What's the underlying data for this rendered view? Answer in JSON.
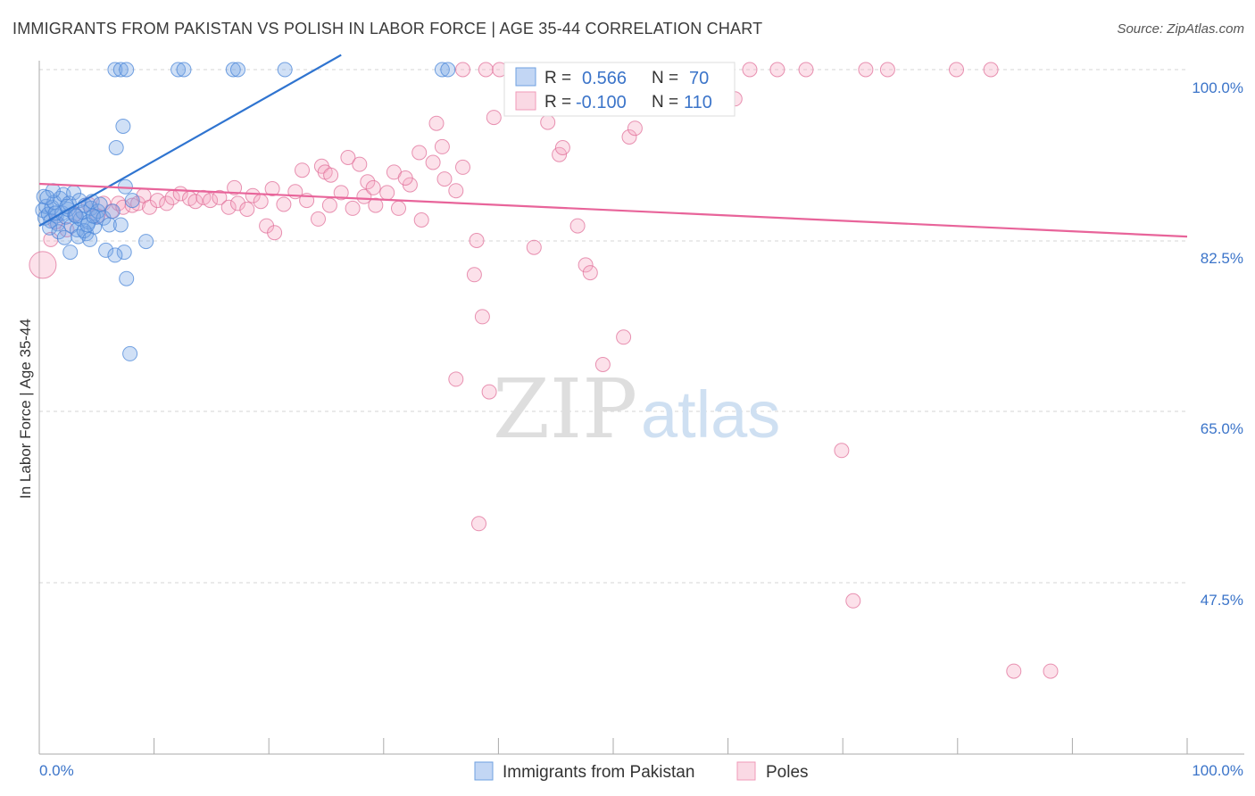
{
  "header": {
    "title": "IMMIGRANTS FROM PAKISTAN VS POLISH IN LABOR FORCE | AGE 35-44 CORRELATION CHART",
    "source": "Source: ZipAtlas.com"
  },
  "watermark": {
    "zip": "ZIP",
    "atlas": "atlas"
  },
  "legend": {
    "rows": [
      {
        "r_label": "R =",
        "r_value": "0.566",
        "n_label": "N =",
        "n_value": "70",
        "color": "#6fa0e0"
      },
      {
        "r_label": "R =",
        "r_value": "-0.100",
        "n_label": "N =",
        "n_value": "110",
        "color": "#f09ab8"
      }
    ]
  },
  "bottom_legend": [
    {
      "label": "Immigrants from Pakistan",
      "color": "#6fa0e0"
    },
    {
      "label": "Poles",
      "color": "#f09ab8"
    }
  ],
  "chart_data": {
    "type": "scatter",
    "title": "IMMIGRANTS FROM PAKISTAN VS POLISH IN LABOR FORCE | AGE 35-44 CORRELATION CHART",
    "xlabel": "",
    "ylabel": "In Labor Force | Age 35-44",
    "xlim": [
      0,
      100
    ],
    "ylim": [
      30,
      101.5
    ],
    "x_tick_labels": [
      "0.0%",
      "100.0%"
    ],
    "y_ticks": [
      100,
      82.5,
      65,
      47.5
    ],
    "y_tick_labels": [
      "100.0%",
      "82.5%",
      "65.0%",
      "47.5%"
    ],
    "grid": true,
    "series": [
      {
        "name": "Immigrants from Pakistan",
        "color": "#4a86d8",
        "fill": "rgba(120,165,230,0.35)",
        "trend": {
          "x0": 0,
          "y0": 84.0,
          "x1": 26.3,
          "y1": 101.5,
          "color": "#2f74d0"
        },
        "points": [
          [
            0.3,
            85.6
          ],
          [
            0.5,
            84.8
          ],
          [
            0.6,
            86.0
          ],
          [
            0.8,
            85.2
          ],
          [
            1.0,
            84.5
          ],
          [
            1.1,
            85.9
          ],
          [
            1.3,
            86.4
          ],
          [
            1.5,
            85.0
          ],
          [
            1.6,
            84.2
          ],
          [
            1.8,
            86.8
          ],
          [
            2.0,
            85.3
          ],
          [
            2.1,
            87.2
          ],
          [
            2.3,
            84.9
          ],
          [
            2.5,
            85.7
          ],
          [
            2.6,
            86.3
          ],
          [
            2.8,
            84.0
          ],
          [
            3.0,
            87.4
          ],
          [
            3.1,
            85.1
          ],
          [
            3.3,
            83.6
          ],
          [
            3.5,
            86.6
          ],
          [
            3.6,
            84.7
          ],
          [
            3.8,
            85.4
          ],
          [
            4.0,
            86.1
          ],
          [
            4.1,
            83.2
          ],
          [
            4.3,
            84.4
          ],
          [
            4.5,
            85.8
          ],
          [
            4.6,
            86.5
          ],
          [
            4.8,
            83.9
          ],
          [
            5.0,
            84.9
          ],
          [
            5.1,
            85.5
          ],
          [
            5.3,
            86.2
          ],
          [
            0.4,
            87.0
          ],
          [
            0.9,
            83.8
          ],
          [
            1.2,
            87.6
          ],
          [
            1.7,
            83.4
          ],
          [
            2.2,
            82.8
          ],
          [
            2.7,
            81.3
          ],
          [
            3.4,
            82.9
          ],
          [
            3.9,
            83.5
          ],
          [
            4.4,
            82.6
          ],
          [
            0.7,
            86.9
          ],
          [
            1.4,
            85.3
          ],
          [
            2.4,
            86.0
          ],
          [
            3.2,
            85.0
          ],
          [
            4.2,
            84.1
          ],
          [
            4.7,
            85.0
          ],
          [
            5.6,
            84.8
          ],
          [
            6.1,
            84.1
          ],
          [
            6.4,
            85.5
          ],
          [
            5.8,
            81.5
          ],
          [
            7.1,
            84.1
          ],
          [
            8.1,
            86.6
          ],
          [
            7.4,
            81.3
          ],
          [
            6.6,
            81.0
          ],
          [
            9.3,
            82.4
          ],
          [
            7.9,
            70.9
          ],
          [
            7.6,
            78.6
          ],
          [
            7.5,
            88.0
          ],
          [
            6.7,
            92.0
          ],
          [
            7.3,
            94.2
          ],
          [
            6.6,
            100
          ],
          [
            7.1,
            100
          ],
          [
            7.6,
            100
          ],
          [
            12.1,
            100
          ],
          [
            12.6,
            100
          ],
          [
            16.9,
            100
          ],
          [
            17.3,
            100
          ],
          [
            21.4,
            100
          ],
          [
            35.1,
            100
          ],
          [
            35.6,
            100
          ]
        ]
      },
      {
        "name": "Poles",
        "color": "#e0709a",
        "fill": "rgba(245,170,195,0.35)",
        "trend": {
          "x0": 0,
          "y0": 88.3,
          "x1": 100,
          "y1": 82.9,
          "color": "#e8649a"
        },
        "points": [
          [
            0.3,
            80.0
          ],
          [
            1.0,
            82.6
          ],
          [
            1.4,
            84.4
          ],
          [
            2.4,
            83.6
          ],
          [
            3.1,
            85.2
          ],
          [
            4.3,
            86.2
          ],
          [
            5.1,
            85.0
          ],
          [
            5.6,
            86.3
          ],
          [
            6.3,
            85.5
          ],
          [
            6.9,
            86.3
          ],
          [
            7.3,
            85.9
          ],
          [
            8.1,
            86.1
          ],
          [
            8.6,
            86.3
          ],
          [
            9.1,
            87.1
          ],
          [
            9.6,
            85.9
          ],
          [
            10.3,
            86.6
          ],
          [
            11.1,
            86.3
          ],
          [
            11.6,
            86.9
          ],
          [
            12.3,
            87.3
          ],
          [
            13.1,
            86.8
          ],
          [
            13.6,
            86.5
          ],
          [
            14.3,
            86.9
          ],
          [
            14.9,
            86.6
          ],
          [
            15.7,
            86.9
          ],
          [
            16.5,
            85.9
          ],
          [
            17.3,
            86.3
          ],
          [
            18.1,
            85.7
          ],
          [
            18.6,
            87.1
          ],
          [
            19.3,
            86.5
          ],
          [
            20.3,
            87.8
          ],
          [
            21.3,
            86.2
          ],
          [
            22.3,
            87.5
          ],
          [
            23.3,
            86.6
          ],
          [
            24.3,
            84.7
          ],
          [
            25.3,
            86.1
          ],
          [
            26.3,
            87.4
          ],
          [
            27.3,
            85.8
          ],
          [
            28.3,
            87.0
          ],
          [
            29.3,
            86.1
          ],
          [
            30.3,
            87.4
          ],
          [
            31.3,
            85.8
          ],
          [
            32.3,
            88.2
          ],
          [
            33.3,
            84.6
          ],
          [
            34.3,
            90.5
          ],
          [
            35.3,
            88.8
          ],
          [
            36.3,
            87.6
          ],
          [
            17.0,
            87.9
          ],
          [
            19.8,
            84.0
          ],
          [
            20.5,
            83.3
          ],
          [
            22.9,
            89.7
          ],
          [
            24.6,
            90.1
          ],
          [
            24.9,
            89.5
          ],
          [
            25.4,
            89.2
          ],
          [
            26.9,
            91.0
          ],
          [
            27.9,
            90.3
          ],
          [
            28.6,
            88.5
          ],
          [
            29.1,
            87.9
          ],
          [
            30.9,
            89.5
          ],
          [
            31.9,
            88.9
          ],
          [
            33.1,
            91.5
          ],
          [
            34.6,
            94.5
          ],
          [
            35.1,
            92.1
          ],
          [
            36.9,
            90.0
          ],
          [
            38.1,
            82.5
          ],
          [
            38.6,
            74.7
          ],
          [
            37.9,
            79.0
          ],
          [
            36.3,
            68.3
          ],
          [
            39.2,
            67.0
          ],
          [
            38.3,
            53.5
          ],
          [
            43.1,
            81.8
          ],
          [
            44.3,
            94.6
          ],
          [
            45.3,
            91.3
          ],
          [
            45.6,
            92.0
          ],
          [
            46.9,
            84.0
          ],
          [
            47.6,
            80.0
          ],
          [
            48.0,
            79.2
          ],
          [
            49.1,
            69.8
          ],
          [
            50.9,
            72.6
          ],
          [
            50.0,
            97.0
          ],
          [
            51.4,
            93.1
          ],
          [
            51.9,
            94.0
          ],
          [
            52.9,
            100
          ],
          [
            54.6,
            100
          ],
          [
            55.9,
            100
          ],
          [
            58.3,
            100
          ],
          [
            60.6,
            97.0
          ],
          [
            64.3,
            100
          ],
          [
            66.8,
            100
          ],
          [
            69.9,
            61.0
          ],
          [
            72.0,
            100
          ],
          [
            73.9,
            100
          ],
          [
            79.9,
            100
          ],
          [
            82.9,
            100
          ],
          [
            36.9,
            100
          ],
          [
            38.9,
            100
          ],
          [
            39.6,
            95.1
          ],
          [
            40.1,
            100
          ],
          [
            41.2,
            100
          ],
          [
            42.9,
            100
          ],
          [
            43.9,
            100
          ],
          [
            47.1,
            100
          ],
          [
            48.9,
            100
          ],
          [
            49.6,
            100
          ],
          [
            55.1,
            100
          ],
          [
            56.9,
            100
          ],
          [
            59.6,
            100
          ],
          [
            61.9,
            100
          ],
          [
            70.9,
            45.6
          ],
          [
            84.9,
            38.4
          ],
          [
            88.1,
            38.4
          ]
        ]
      }
    ]
  }
}
